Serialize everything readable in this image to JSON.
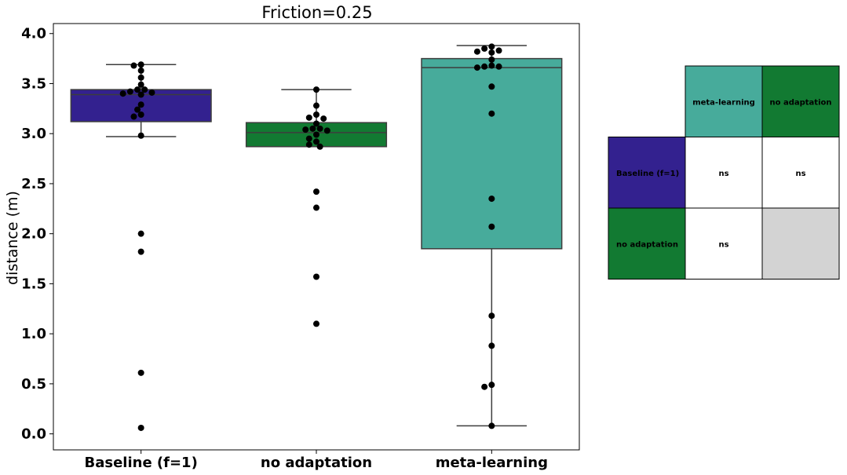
{
  "chart_data": {
    "type": "box",
    "title": "Friction=0.25",
    "xlabel": "",
    "ylabel": "distance (m)",
    "ylim": [
      -0.16,
      4.1
    ],
    "yticks": [
      "0.0",
      "0.5",
      "1.0",
      "1.5",
      "2.0",
      "2.5",
      "3.0",
      "3.5",
      "4.0"
    ],
    "ytick_values": [
      0.0,
      0.5,
      1.0,
      1.5,
      2.0,
      2.5,
      3.0,
      3.5,
      4.0
    ],
    "categories": [
      "Baseline (f=1)",
      "no adaptation",
      "meta-learning"
    ],
    "boxes": [
      {
        "color": "#33218f",
        "q1": 3.12,
        "median": 3.39,
        "q3": 3.44,
        "whisker_low": 2.97,
        "whisker_high": 3.69
      },
      {
        "color": "#127a32",
        "q1": 2.87,
        "median": 3.01,
        "q3": 3.11,
        "whisker_low": 2.87,
        "whisker_high": 3.44
      },
      {
        "color": "#47ab9b",
        "q1": 1.85,
        "median": 3.66,
        "q3": 3.75,
        "whisker_low": 0.08,
        "whisker_high": 3.88
      }
    ],
    "points": [
      [
        3.69,
        3.68,
        3.63,
        3.56,
        3.49,
        3.44,
        3.44,
        3.42,
        3.41,
        3.4,
        3.39,
        3.29,
        3.24,
        3.19,
        3.17,
        2.98,
        2.0,
        1.82,
        0.61,
        0.06
      ],
      [
        3.44,
        3.28,
        3.19,
        3.16,
        3.15,
        3.1,
        3.05,
        3.05,
        3.04,
        3.03,
        2.99,
        2.95,
        2.92,
        2.89,
        2.87,
        2.42,
        2.26,
        1.57,
        1.1
      ],
      [
        3.87,
        3.85,
        3.83,
        3.82,
        3.81,
        3.74,
        3.68,
        3.67,
        3.67,
        3.66,
        3.47,
        3.2,
        2.35,
        2.07,
        1.18,
        0.88,
        0.49,
        0.47,
        0.08
      ]
    ],
    "significance_table": {
      "col_headers": [
        "meta-learning",
        "no adaptation"
      ],
      "col_colors": [
        "#47ab9b",
        "#127a32"
      ],
      "rows": [
        {
          "label": "Baseline (f=1)",
          "color": "#33218f",
          "cells": [
            "ns",
            "ns"
          ]
        },
        {
          "label": "no adaptation",
          "color": "#127a32",
          "cells": [
            "ns",
            ""
          ]
        }
      ],
      "empty_cell_color": "#d3d3d3"
    }
  }
}
